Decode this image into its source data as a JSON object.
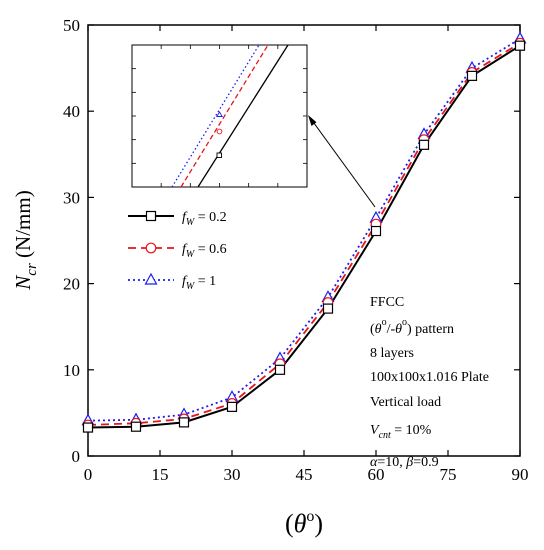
{
  "chart_data": {
    "type": "line",
    "x": [
      0,
      10,
      20,
      30,
      40,
      50,
      60,
      70,
      80,
      90
    ],
    "xlim": [
      0,
      90
    ],
    "ylim": [
      0,
      50
    ],
    "xticks": [
      0,
      15,
      30,
      45,
      60,
      75,
      90
    ],
    "yticks": [
      0,
      10,
      20,
      30,
      40,
      50
    ],
    "xlabel": {
      "open": "(",
      "theta": "θ",
      "sup": "o",
      "close": ")"
    },
    "ylabel": {
      "main": "N",
      "sub": "cr",
      "unit": " (N/mm)"
    },
    "series": [
      {
        "name": "f",
        "sub": "W",
        "eq": " = 0.2",
        "color": "#000000",
        "dash": "solid",
        "marker": "square",
        "values": [
          3.3,
          3.4,
          3.9,
          5.7,
          10.0,
          17.1,
          26.1,
          36.1,
          44.1,
          47.6
        ]
      },
      {
        "name": "f",
        "sub": "W",
        "eq": " = 0.6",
        "color": "#e8141b",
        "dash": "dash",
        "marker": "circle",
        "values": [
          3.6,
          3.8,
          4.3,
          6.1,
          10.7,
          17.8,
          26.9,
          36.7,
          44.5,
          47.9
        ]
      },
      {
        "name": "f",
        "sub": "W",
        "eq": " = 1",
        "color": "#1d1df0",
        "dash": "dot",
        "marker": "triangle",
        "values": [
          4.1,
          4.2,
          4.8,
          6.8,
          11.3,
          18.4,
          27.6,
          37.3,
          45.0,
          48.4
        ]
      }
    ],
    "annotation": {
      "l1": "FFCC",
      "l2": {
        "a": "(",
        "t1": "θ",
        "s1": "o",
        "m": "/-",
        "t2": "θ",
        "s2": "o",
        "b": ") pattern"
      },
      "l3": "8 layers",
      "l4": "100x100x1.016 Plate",
      "l5": "Vertical load",
      "l6": {
        "v": "V",
        "sub": "cnt",
        "eq": " = 10%"
      },
      "l7": {
        "alpha": "α",
        "av": "=10, ",
        "beta": "β",
        "bv": "=0.9"
      }
    },
    "inset": {
      "type": "zoom",
      "ticks": 5
    }
  }
}
